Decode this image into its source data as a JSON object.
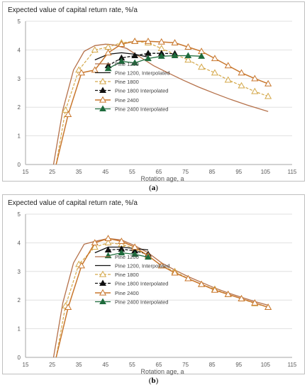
{
  "figure": {
    "captions": [
      "a",
      "b"
    ]
  },
  "chart_data": [
    {
      "type": "line",
      "title": "Expected value of capital return rate,  %/a",
      "xlabel": "Rotation age, a",
      "ylabel": "",
      "xlim": [
        15,
        115
      ],
      "ylim": [
        0,
        5
      ],
      "xticks": [
        15,
        25,
        35,
        45,
        55,
        65,
        75,
        85,
        95,
        105,
        115
      ],
      "yticks": [
        0,
        1,
        2,
        3,
        4,
        5
      ],
      "grid": "horizontal",
      "legend": "inside-lower-center",
      "series": [
        {
          "name": "Pine 1200",
          "color": "#b5714a",
          "dash": "",
          "marker": "none",
          "width": 1.3,
          "points": [
            [
              25.5,
              0
            ],
            [
              29,
              1.9
            ],
            [
              33,
              3.3
            ],
            [
              37,
              3.95
            ],
            [
              41,
              4.15
            ],
            [
              45,
              4.2
            ],
            [
              48,
              4.18
            ],
            [
              53,
              4.05
            ],
            [
              58,
              3.75
            ],
            [
              63,
              3.45
            ],
            [
              68,
              3.22
            ],
            [
              74,
              2.95
            ],
            [
              80,
              2.7
            ],
            [
              86,
              2.48
            ],
            [
              92,
              2.27
            ],
            [
              98,
              2.08
            ],
            [
              106,
              1.85
            ]
          ]
        },
        {
          "name": "Pine 1200, Interpolated",
          "color": "#111111",
          "dash": "",
          "marker": "none",
          "width": 1.3,
          "points": [
            [
              41,
              3.65
            ],
            [
              46,
              3.85
            ],
            [
              51,
              3.9
            ],
            [
              56,
              3.85
            ],
            [
              61,
              3.75
            ]
          ]
        },
        {
          "name": "Pine 1800",
          "color": "#d4a84a",
          "dash": "4,2",
          "marker": "triangle-open",
          "width": 1.2,
          "points": [
            [
              26.5,
              0
            ],
            [
              30,
              1.9
            ],
            [
              35,
              3.3
            ],
            [
              41,
              4.0
            ],
            [
              46,
              4.1
            ],
            [
              51,
              4.25
            ],
            [
              56,
              4.3
            ],
            [
              61,
              4.25
            ],
            [
              66,
              4.05
            ],
            [
              71,
              3.85
            ],
            [
              76,
              3.65
            ],
            [
              81,
              3.4
            ],
            [
              86,
              3.2
            ],
            [
              91,
              2.95
            ],
            [
              96,
              2.75
            ],
            [
              101,
              2.55
            ],
            [
              106,
              2.38
            ]
          ]
        },
        {
          "name": "Pine 1800 Interpolated",
          "color": "#111111",
          "dash": "4,2",
          "marker": "triangle-filled",
          "width": 1.3,
          "points": [
            [
              46,
              3.45
            ],
            [
              51,
              3.72
            ],
            [
              56,
              3.8
            ],
            [
              61,
              3.88
            ],
            [
              66,
              3.88
            ],
            [
              71,
              3.87
            ]
          ]
        },
        {
          "name": "Pine 2400",
          "color": "#c8762c",
          "dash": "",
          "marker": "triangle-open",
          "width": 1.5,
          "points": [
            [
              26.5,
              0
            ],
            [
              31,
              1.75
            ],
            [
              36,
              3.2
            ],
            [
              41,
              3.3
            ],
            [
              46,
              3.9
            ],
            [
              51,
              4.2
            ],
            [
              56,
              4.3
            ],
            [
              61,
              4.3
            ],
            [
              66,
              4.28
            ],
            [
              71,
              4.25
            ],
            [
              76,
              4.1
            ],
            [
              81,
              3.95
            ],
            [
              86,
              3.7
            ],
            [
              91,
              3.45
            ],
            [
              96,
              3.2
            ],
            [
              101,
              3.0
            ],
            [
              106,
              2.82
            ]
          ]
        },
        {
          "name": "Pine 2400 Interpolated",
          "color": "#1e6b3c",
          "dash": "",
          "marker": "triangle-filled",
          "width": 1.3,
          "points": [
            [
              46,
              3.35
            ],
            [
              51,
              3.6
            ],
            [
              56,
              3.55
            ],
            [
              61,
              3.7
            ],
            [
              66,
              3.78
            ],
            [
              71,
              3.8
            ],
            [
              76,
              3.8
            ],
            [
              81,
              3.78
            ]
          ]
        }
      ]
    },
    {
      "type": "line",
      "title": "Expected value of capital return rate,  %/a",
      "xlabel": "Rotation age, a",
      "ylabel": "",
      "xlim": [
        15,
        115
      ],
      "ylim": [
        0,
        5
      ],
      "xticks": [
        15,
        25,
        35,
        45,
        55,
        65,
        75,
        85,
        95,
        105,
        115
      ],
      "yticks": [
        0,
        1,
        2,
        3,
        4,
        5
      ],
      "grid": "horizontal",
      "legend": "inside-lower-center",
      "series": [
        {
          "name": "Pine 1200",
          "color": "#b5714a",
          "dash": "",
          "marker": "none",
          "width": 1.3,
          "points": [
            [
              25.5,
              0
            ],
            [
              29,
              1.9
            ],
            [
              33,
              3.3
            ],
            [
              37,
              3.95
            ],
            [
              41,
              4.05
            ],
            [
              46,
              4.15
            ],
            [
              51,
              4.1
            ],
            [
              56,
              3.9
            ],
            [
              61,
              3.65
            ],
            [
              66,
              3.3
            ],
            [
              71,
              3.05
            ],
            [
              76,
              2.82
            ],
            [
              81,
              2.62
            ],
            [
              86,
              2.42
            ],
            [
              91,
              2.25
            ],
            [
              96,
              2.1
            ],
            [
              101,
              1.95
            ],
            [
              106,
              1.82
            ]
          ]
        },
        {
          "name": "Pine 1200, Interpolated",
          "color": "#111111",
          "dash": "",
          "marker": "none",
          "width": 1.3,
          "points": [
            [
              41,
              3.65
            ],
            [
              46,
              3.85
            ],
            [
              51,
              3.85
            ],
            [
              56,
              3.8
            ],
            [
              61,
              3.75
            ]
          ]
        },
        {
          "name": "Pine 1800",
          "color": "#d4a84a",
          "dash": "4,2",
          "marker": "triangle-open",
          "width": 1.2,
          "points": [
            [
              26.5,
              0
            ],
            [
              30,
              1.8
            ],
            [
              35,
              3.25
            ],
            [
              41,
              3.85
            ],
            [
              46,
              4.0
            ],
            [
              51,
              3.95
            ],
            [
              56,
              3.8
            ],
            [
              61,
              3.55
            ],
            [
              66,
              3.2
            ],
            [
              71,
              3.0
            ],
            [
              76,
              2.75
            ],
            [
              81,
              2.55
            ],
            [
              86,
              2.38
            ],
            [
              91,
              2.2
            ],
            [
              96,
              2.05
            ],
            [
              101,
              1.88
            ],
            [
              106,
              1.75
            ]
          ]
        },
        {
          "name": "Pine 1800 Interpolated",
          "color": "#111111",
          "dash": "4,2",
          "marker": "triangle-filled",
          "width": 1.3,
          "points": [
            [
              46,
              3.75
            ],
            [
              51,
              3.78
            ],
            [
              56,
              3.72
            ],
            [
              61,
              3.6
            ]
          ]
        },
        {
          "name": "Pine 2400",
          "color": "#c8762c",
          "dash": "",
          "marker": "triangle-open",
          "width": 1.5,
          "points": [
            [
              26.5,
              0
            ],
            [
              31,
              1.75
            ],
            [
              36,
              3.2
            ],
            [
              41,
              4.0
            ],
            [
              46,
              4.15
            ],
            [
              51,
              4.05
            ],
            [
              56,
              3.85
            ],
            [
              61,
              3.55
            ],
            [
              66,
              3.2
            ],
            [
              71,
              2.95
            ],
            [
              76,
              2.75
            ],
            [
              81,
              2.55
            ],
            [
              86,
              2.35
            ],
            [
              91,
              2.2
            ],
            [
              96,
              2.05
            ],
            [
              101,
              1.9
            ],
            [
              106,
              1.75
            ]
          ]
        },
        {
          "name": "Pine 2400 Interpolated",
          "color": "#1e6b3c",
          "dash": "",
          "marker": "triangle-filled",
          "width": 1.3,
          "points": [
            [
              46,
              3.55
            ],
            [
              51,
              3.65
            ],
            [
              56,
              3.6
            ],
            [
              61,
              3.5
            ]
          ]
        }
      ]
    }
  ]
}
